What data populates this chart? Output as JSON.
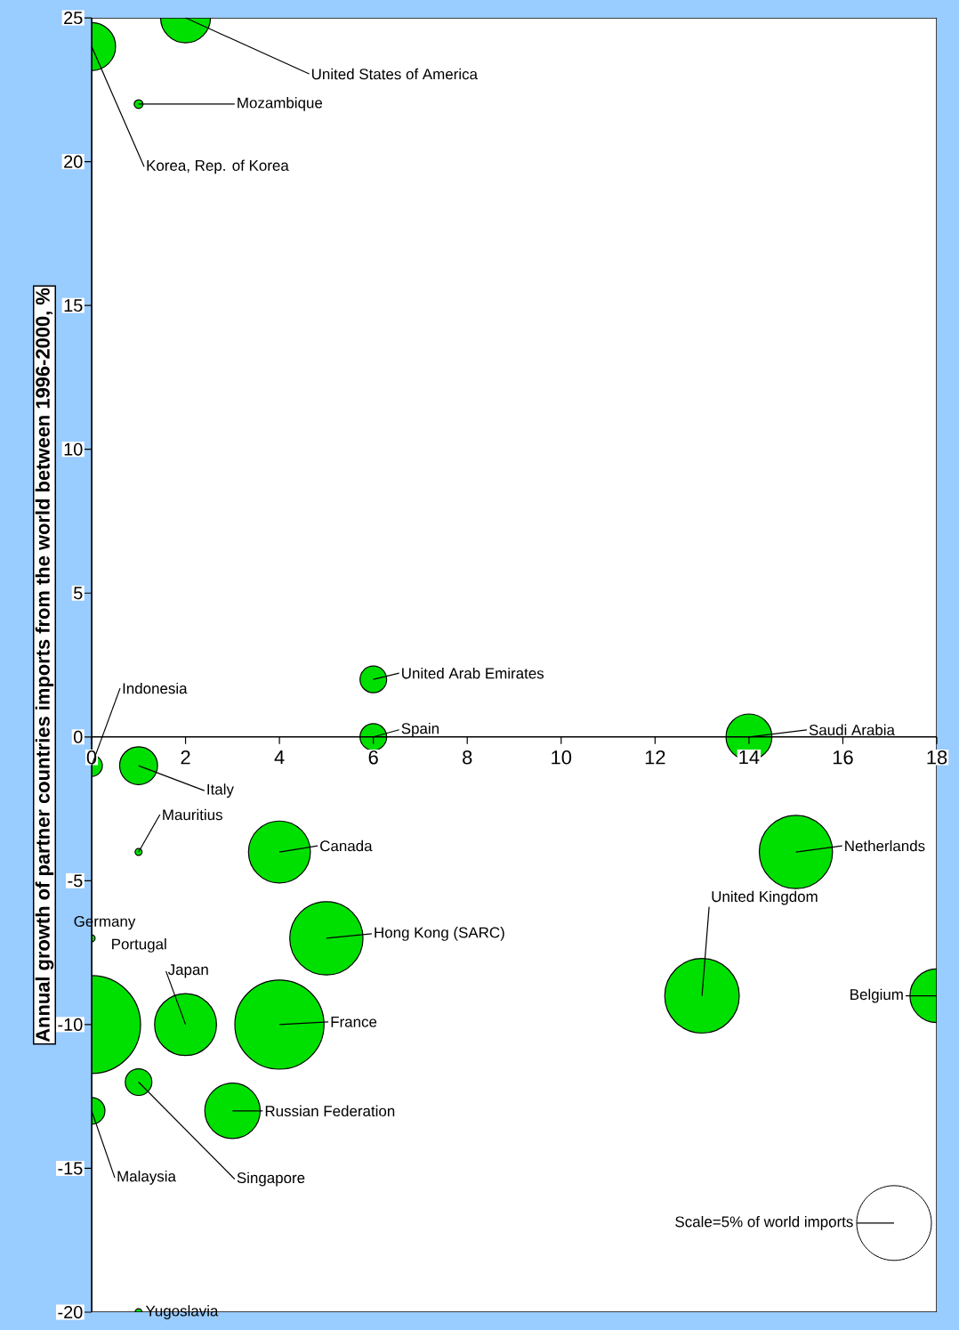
{
  "chart_data": {
    "type": "bubble",
    "ylabel": "Annual growth of partner countries imports from the world between 1996-2000, %",
    "xlim": [
      0,
      18
    ],
    "xticks": [
      0,
      2,
      4,
      6,
      8,
      10,
      12,
      14,
      16,
      18
    ],
    "ylim": [
      -20,
      25
    ],
    "yticks": [
      -20,
      -15,
      -10,
      -5,
      0,
      5,
      10,
      15,
      20,
      25
    ],
    "legend": "bottom right",
    "annotations": [
      "Scale=5% of world imports",
      "Germany"
    ],
    "series": [
      {
        "name": "United States of America",
        "color": "#00e000",
        "x": [
          2
        ],
        "values": [
          25
        ],
        "sizes": [
          0.26
        ]
      },
      {
        "name": "Korea, Rep. of Korea",
        "color": "#00e000",
        "x": [
          0
        ],
        "values": [
          24
        ],
        "sizes": [
          0.24
        ]
      },
      {
        "name": "Mozambique",
        "color": "#00e000",
        "x": [
          1
        ],
        "values": [
          22
        ],
        "sizes": [
          0.008
        ]
      },
      {
        "name": "United Arab Emirates",
        "color": "#00e000",
        "x": [
          6
        ],
        "values": [
          2
        ],
        "sizes": [
          0.074
        ]
      },
      {
        "name": "Spain",
        "color": "#00e000",
        "x": [
          6
        ],
        "values": [
          0
        ],
        "sizes": [
          0.074
        ]
      },
      {
        "name": "Saudi Arabia",
        "color": "#00e000",
        "x": [
          14
        ],
        "values": [
          0
        ],
        "sizes": [
          0.22
        ]
      },
      {
        "name": "Indonesia",
        "color": "#00e000",
        "x": [
          0
        ],
        "values": [
          -1
        ],
        "sizes": [
          0.048
        ]
      },
      {
        "name": "Italy",
        "color": "#00e000",
        "x": [
          1
        ],
        "values": [
          -1
        ],
        "sizes": [
          0.15
        ]
      },
      {
        "name": "Mauritius",
        "color": "#00e000",
        "x": [
          1
        ],
        "values": [
          -4
        ],
        "sizes": [
          0.005
        ]
      },
      {
        "name": "Canada",
        "color": "#00e000",
        "x": [
          4
        ],
        "values": [
          -4
        ],
        "sizes": [
          0.4
        ]
      },
      {
        "name": "Netherlands",
        "color": "#00e000",
        "x": [
          15
        ],
        "values": [
          -4
        ],
        "sizes": [
          0.56
        ]
      },
      {
        "name": "Hong Kong (SARC)",
        "color": "#00e000",
        "x": [
          5
        ],
        "values": [
          -7
        ],
        "sizes": [
          0.56
        ]
      },
      {
        "name": "Portugal",
        "color": "#00e000",
        "x": [
          0
        ],
        "values": [
          -7
        ],
        "sizes": [
          0.005
        ]
      },
      {
        "color": "#00e000",
        "x": [
          0
        ],
        "values": [
          -10
        ],
        "sizes": [
          1
        ]
      },
      {
        "name": "Japan",
        "color": "#00e000",
        "x": [
          2
        ],
        "values": [
          -10
        ],
        "sizes": [
          0.4
        ]
      },
      {
        "name": "France",
        "color": "#00e000",
        "x": [
          4
        ],
        "values": [
          -10
        ],
        "sizes": [
          0.83
        ]
      },
      {
        "name": "United Kingdom",
        "color": "#00e000",
        "x": [
          13
        ],
        "values": [
          -9
        ],
        "sizes": [
          0.58
        ]
      },
      {
        "name": "Belgium",
        "color": "#00e000",
        "x": [
          18
        ],
        "values": [
          -9
        ],
        "sizes": [
          0.3
        ]
      },
      {
        "name": "Singapore",
        "color": "#00e000",
        "x": [
          1
        ],
        "values": [
          -12
        ],
        "sizes": [
          0.074
        ]
      },
      {
        "name": "Malaysia",
        "color": "#00e000",
        "x": [
          0
        ],
        "values": [
          -13
        ],
        "sizes": [
          0.074
        ]
      },
      {
        "name": "Russian Federation",
        "color": "#00e000",
        "x": [
          3
        ],
        "values": [
          -13
        ],
        "sizes": [
          0.32
        ]
      },
      {
        "name": "Yugoslavia",
        "color": "#00e000",
        "x": [
          1
        ],
        "values": [
          -20
        ],
        "sizes": [
          0.005
        ]
      }
    ]
  }
}
